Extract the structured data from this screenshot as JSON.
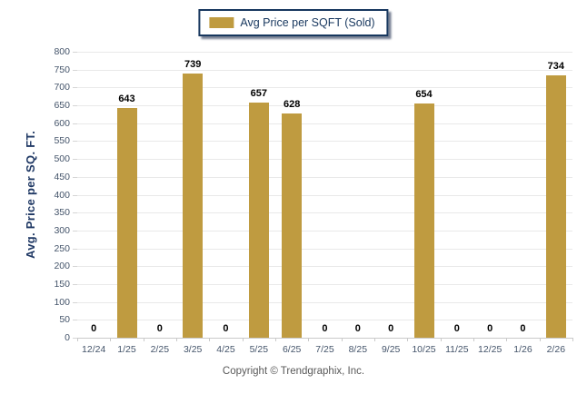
{
  "chart_data": {
    "type": "bar",
    "series_label": "Avg Price per SQFT (Sold)",
    "categories": [
      "12/24",
      "1/25",
      "2/25",
      "3/25",
      "4/25",
      "5/25",
      "6/25",
      "7/25",
      "8/25",
      "9/25",
      "10/25",
      "11/25",
      "12/25",
      "1/26",
      "2/26"
    ],
    "values": [
      0,
      643,
      0,
      739,
      0,
      657,
      628,
      0,
      0,
      0,
      654,
      0,
      0,
      0,
      734
    ],
    "title": "",
    "xlabel": "",
    "ylabel": "Avg. Price per SQ. FT.",
    "ylim": [
      0,
      800
    ],
    "ytick_step": 50,
    "grid": true,
    "legend_position": "top-center"
  },
  "footer": {
    "copyright": "Copyright © Trendgraphix, Inc."
  },
  "colors": {
    "bar": "#BF9B40",
    "legend_border": "#17375E",
    "legend_text": "#17375E",
    "axis_title": "#1F3864",
    "tick_label": "#44546A",
    "value_label": "#000000",
    "gridline": "#E9E9E9",
    "axis_line": "#C9C9C9",
    "copyright_text": "#595959",
    "background": "#FFFFFF"
  }
}
